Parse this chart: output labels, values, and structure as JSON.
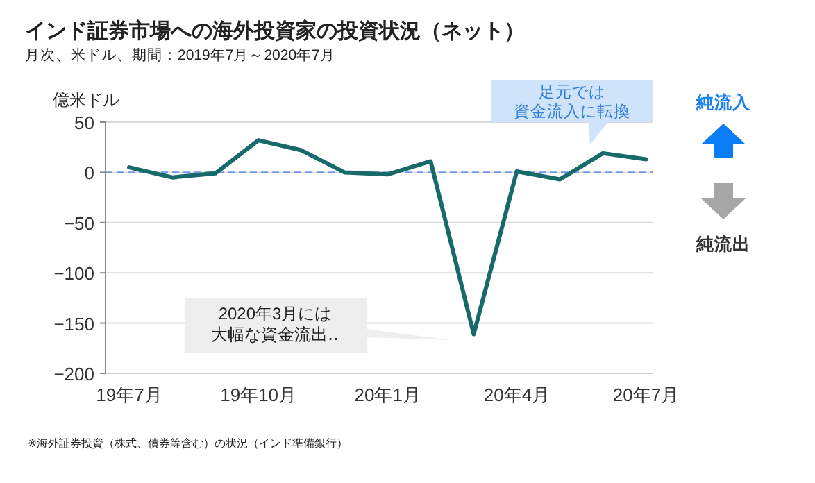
{
  "chart_data": {
    "type": "line",
    "title": "インド証券市場への海外投資家の投資状況（ネット）",
    "subtitle": "月次、米ドル、期間：2019年7月～2020年7月",
    "ylabel": "億米ドル",
    "categories": [
      "19年7月",
      null,
      null,
      "19年10月",
      null,
      null,
      "20年1月",
      null,
      null,
      "20年4月",
      null,
      null,
      "20年7月"
    ],
    "series": [
      {
        "color": "#17696a",
        "values": [
          5,
          -5,
          -1,
          32,
          22,
          0,
          -2,
          11,
          -161,
          1,
          -7,
          19,
          13
        ]
      }
    ],
    "ylim": [
      -200,
      50
    ],
    "yticks": [
      -200,
      -150,
      -100,
      -50,
      0,
      50
    ],
    "grid": "y",
    "marker": "none",
    "line_style": "solid",
    "ref_lines": [
      {
        "axis": "y",
        "value": 0,
        "color": "#6f9be8",
        "line_style": "dashed"
      }
    ],
    "annotations": [
      "足元では",
      "資金流入に転換",
      "2020年3月には",
      "大幅な資金流出‥",
      "純流入",
      "純流出",
      "※海外証券投資（株式、債券等含む）の状況（インド準備銀行）"
    ]
  }
}
